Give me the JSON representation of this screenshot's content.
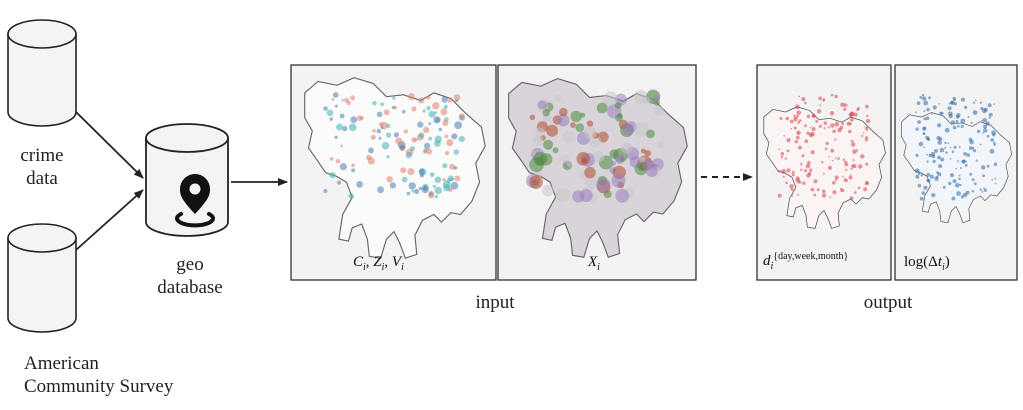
{
  "sources": [
    {
      "label_lines": [
        "crime",
        "data"
      ]
    },
    {
      "label_lines": [
        "American",
        "Community Survey"
      ]
    }
  ],
  "database": {
    "label_lines": [
      "geo",
      "database"
    ],
    "icon": "map-pin-icon"
  },
  "input_group": {
    "label": "input",
    "panels": [
      {
        "caption_parts": [
          "C",
          "i",
          ", ",
          "Z",
          "i",
          ", ",
          "V",
          "i"
        ],
        "palette": [
          "#4a7eb5",
          "#e07f6e",
          "#3fb3b8"
        ]
      },
      {
        "caption_parts": [
          "X",
          "i"
        ],
        "palette": [
          "#4f8a3e",
          "#b34a2e",
          "#c9c4cc",
          "#9a7fbf"
        ]
      }
    ]
  },
  "output_group": {
    "label": "output",
    "panels": [
      {
        "caption_base": "d",
        "caption_sub": "i",
        "caption_sup": "{day,week,month}",
        "palette": [
          "#d9404a"
        ]
      },
      {
        "caption_prefix": "log(Δ",
        "caption_var": "t",
        "caption_sub": "i",
        "caption_suffix": ")",
        "palette": [
          "#2f6aa5"
        ]
      }
    ]
  },
  "colors": {
    "frame": "#333333",
    "panel_bg": "#f3f3f3",
    "cylinder_fill": "#f4f4f4",
    "outline": "#222222"
  }
}
